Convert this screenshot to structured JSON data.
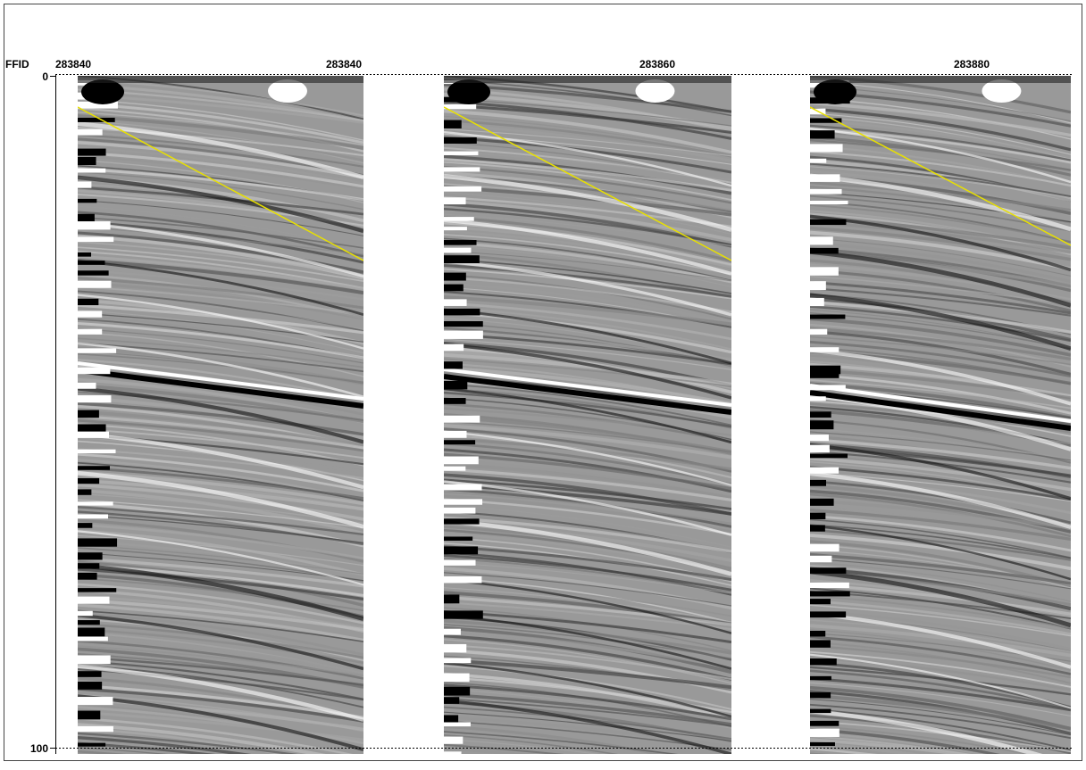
{
  "axis": {
    "label": "FFID",
    "ticks": [
      "0",
      "100"
    ]
  },
  "panels": [
    {
      "labels": [
        "283840",
        "283840"
      ]
    },
    {
      "labels": [
        "283860"
      ]
    },
    {
      "labels": [
        "283880"
      ]
    }
  ]
}
